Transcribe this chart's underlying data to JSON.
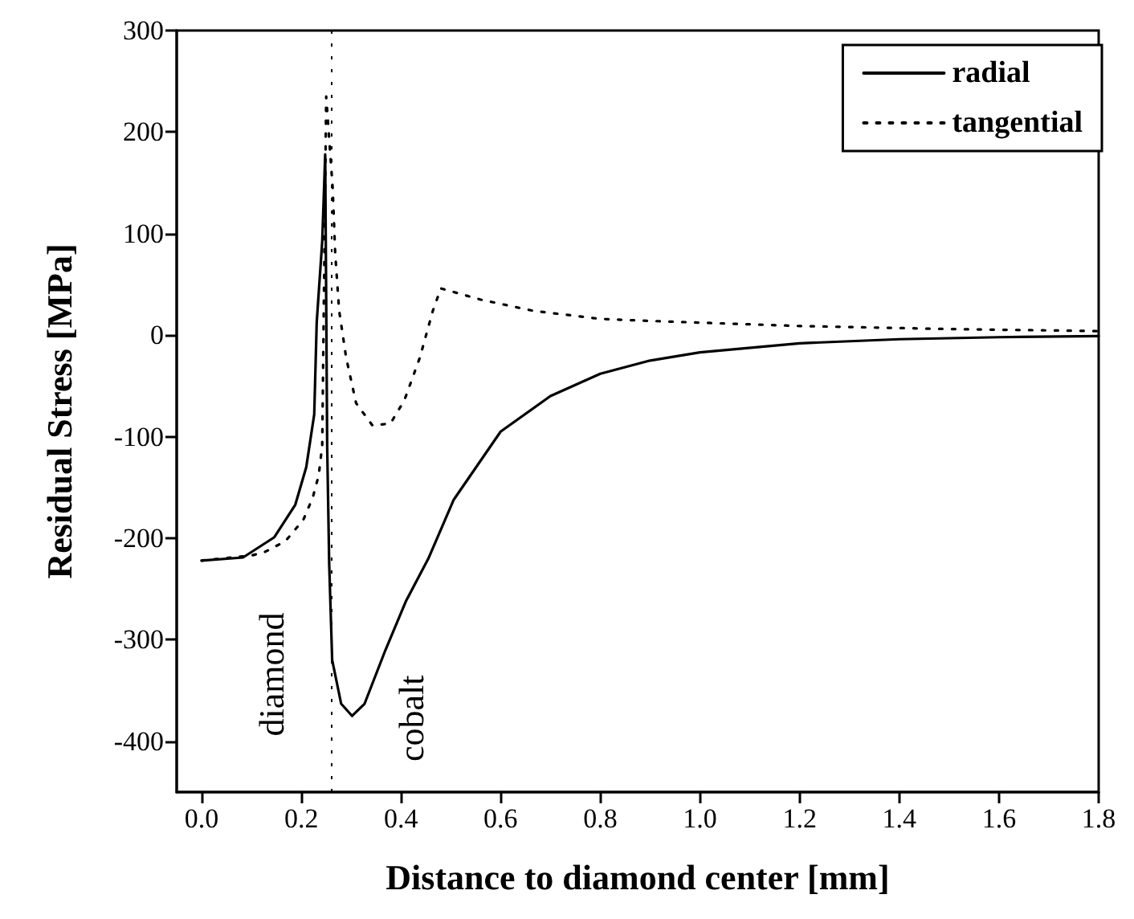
{
  "chart_data": {
    "type": "line",
    "xlabel": "Distance to diamond center [mm]",
    "ylabel": "Residual Stress [MPa]",
    "annotations": [
      "diamond",
      "cobalt"
    ],
    "xlim": [
      -0.05,
      1.8
    ],
    "xticks": [
      {
        "value": 0,
        "label": "0.0"
      },
      0.2,
      0.4,
      0.6,
      0.8,
      {
        "value": 1,
        "label": "1.0"
      },
      1.2,
      1.4,
      1.6,
      1.8
    ],
    "ylim": [
      -450,
      300
    ],
    "yticks": [
      -400,
      -300,
      -200,
      -100,
      0,
      100,
      200,
      300
    ],
    "grid": false,
    "legend": "top right",
    "marker": "none",
    "ref_lines": [
      {
        "axis": "x",
        "value": 0.26,
        "line_style": "dotted",
        "color": "#000000"
      }
    ],
    "series": [
      {
        "name": "radial",
        "color": "#000000",
        "line_style": "solid",
        "x": [
          0,
          0.083,
          0.146,
          0.188,
          0.21,
          0.226,
          0.231,
          0.242,
          0.248,
          0.252,
          0.256,
          0.262,
          0.28,
          0.302,
          0.327,
          0.369,
          0.41,
          0.455,
          0.506,
          0.6,
          0.7,
          0.8,
          0.9,
          1.0,
          1.2,
          1.4,
          1.6,
          1.8
        ],
        "values": [
          -222,
          -219,
          -199,
          -167,
          -130,
          -78,
          13,
          92,
          178,
          -110,
          -225,
          -320,
          -363,
          -375,
          -363,
          -310,
          -262,
          -220,
          -162,
          -95,
          -60,
          -38,
          -25,
          -17,
          -8,
          -4,
          -2,
          -1
        ]
      },
      {
        "name": "tangential",
        "color": "#000000",
        "line_style": "dotted",
        "x": [
          0,
          0.1,
          0.125,
          0.168,
          0.204,
          0.223,
          0.235,
          0.242,
          0.25,
          0.263,
          0.268,
          0.276,
          0.29,
          0.31,
          0.343,
          0.379,
          0.407,
          0.438,
          0.464,
          0.48,
          0.56,
          0.665,
          0.8,
          0.9,
          1.2,
          1.5,
          1.8
        ],
        "values": [
          -222,
          -217,
          -214,
          -203,
          -182,
          -160,
          -138,
          -109,
          235,
          145,
          81,
          24,
          -22,
          -67,
          -89,
          -87,
          -64,
          -22,
          24,
          46,
          35,
          24,
          16,
          14,
          9,
          6,
          4
        ]
      }
    ]
  }
}
